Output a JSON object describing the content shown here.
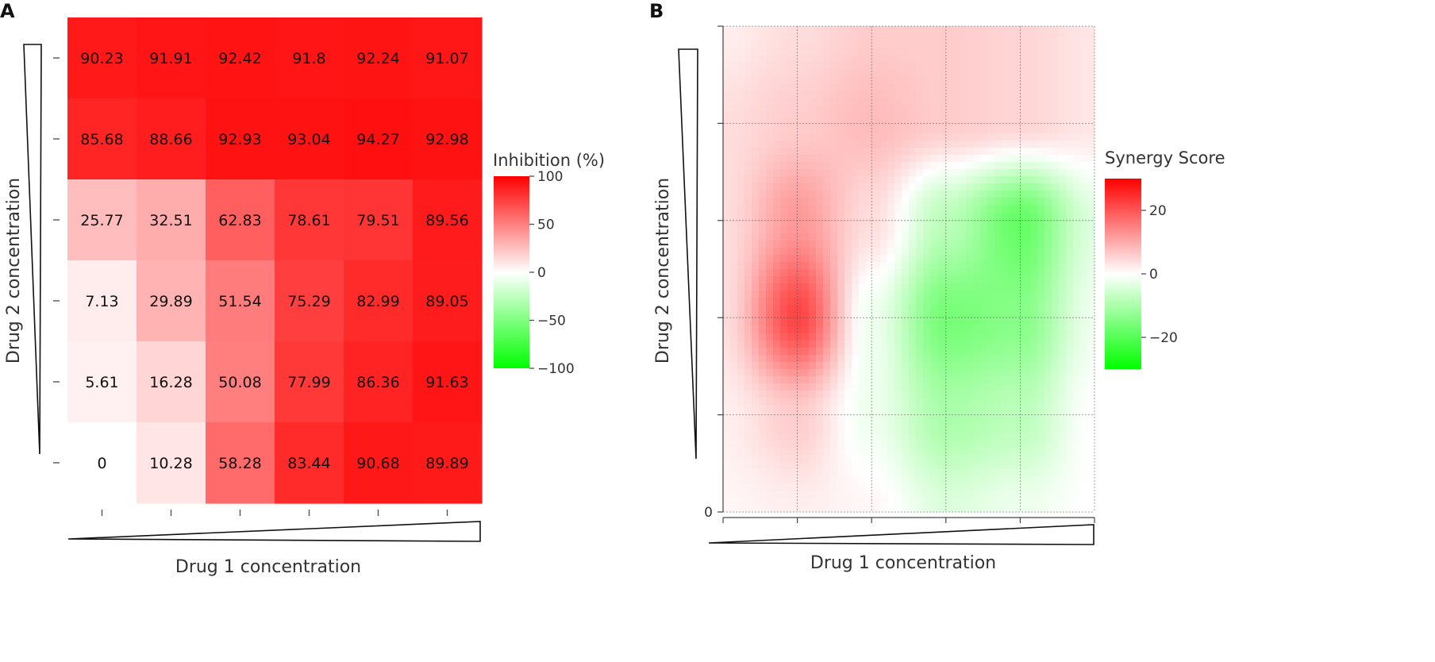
{
  "chart_data": [
    {
      "panel_label": "A",
      "type": "heatmap",
      "title": "",
      "xlabel": "Drug 1 concentration",
      "ylabel": "Drug 2 concentration",
      "rows_top_to_bottom": [
        [
          90.23,
          91.91,
          92.42,
          91.8,
          92.24,
          91.07
        ],
        [
          85.68,
          88.66,
          92.93,
          93.04,
          94.27,
          92.98
        ],
        [
          25.77,
          32.51,
          62.83,
          78.61,
          79.51,
          89.56
        ],
        [
          7.13,
          29.89,
          51.54,
          75.29,
          82.99,
          89.05
        ],
        [
          5.61,
          16.28,
          50.08,
          77.99,
          86.36,
          91.63
        ],
        [
          0,
          10.28,
          58.28,
          83.44,
          90.68,
          89.89
        ]
      ],
      "value_labels": [
        [
          "90.23",
          "91.91",
          "92.42",
          "91.8",
          "92.24",
          "91.07"
        ],
        [
          "85.68",
          "88.66",
          "92.93",
          "93.04",
          "94.27",
          "92.98"
        ],
        [
          "25.77",
          "32.51",
          "62.83",
          "78.61",
          "79.51",
          "89.56"
        ],
        [
          "7.13",
          "29.89",
          "51.54",
          "75.29",
          "82.99",
          "89.05"
        ],
        [
          "5.61",
          "16.28",
          "50.08",
          "77.99",
          "86.36",
          "91.63"
        ],
        [
          "0",
          "10.28",
          "58.28",
          "83.44",
          "90.68",
          "89.89"
        ]
      ],
      "legend": {
        "title": "Inhibition (%)",
        "range": [
          -100,
          100
        ],
        "ticks": [
          100,
          50,
          0,
          -50,
          -100
        ],
        "tick_labels": [
          "100",
          "50",
          "0",
          "−50",
          "−100"
        ],
        "high_color": "#ff0000",
        "mid_color": "#ffffff",
        "low_color": "#00ff00"
      }
    },
    {
      "panel_label": "B",
      "type": "heatmap",
      "title": "",
      "xlabel": "Drug 1 concentration",
      "ylabel": "Drug 2 concentration",
      "x_range": [
        0,
        5
      ],
      "y_range": [
        0,
        5
      ],
      "y_tick_labels": [
        "0"
      ],
      "grid": true,
      "synergy_grid_bottom_to_top": [
        [
          1,
          2,
          1,
          -4,
          -2,
          0
        ],
        [
          2,
          6,
          -2,
          -10,
          -8,
          0
        ],
        [
          4,
          22,
          -2,
          -16,
          -14,
          -2
        ],
        [
          4,
          12,
          4,
          -8,
          -18,
          -4
        ],
        [
          4,
          6,
          8,
          6,
          5,
          3
        ],
        [
          2,
          4,
          6,
          6,
          5,
          3
        ]
      ],
      "legend": {
        "title": "Synergy Score",
        "range": [
          -30,
          30
        ],
        "ticks": [
          20,
          0,
          -20
        ],
        "tick_labels": [
          "20",
          "0",
          "−20"
        ],
        "high_color": "#ff0000",
        "mid_color": "#ffffff",
        "low_color": "#00ff00"
      }
    }
  ]
}
